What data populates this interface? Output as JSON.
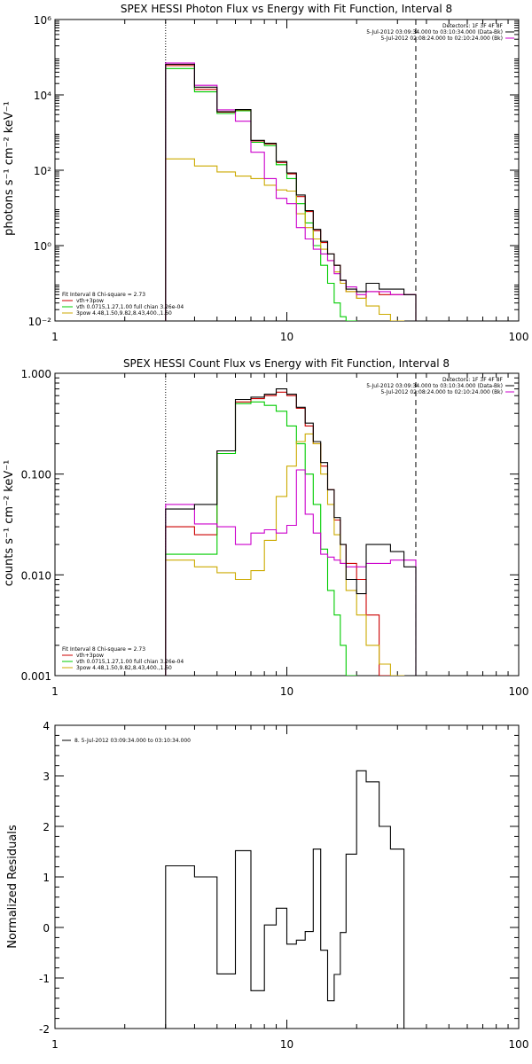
{
  "colors": {
    "total": "#000000",
    "vth_3pow": "#cc0000",
    "vth": "#00cc00",
    "pow3": "#ccaa00",
    "bk": "#cc00cc"
  },
  "chart_data": [
    {
      "type": "line",
      "title": "SPEX HESSI Photon Flux vs Energy with Fit Function, Interval 8",
      "ylabel": "photons s⁻¹ cm⁻² keV⁻¹",
      "xlabel": "",
      "xscale": "log",
      "yscale": "log",
      "xlim": [
        1,
        100
      ],
      "ylim": [
        0.01,
        1000000
      ],
      "xtick_labels": [
        "1",
        "10",
        "100"
      ],
      "ytick_labels": [
        "10⁻²",
        "10⁰",
        "10²",
        "10⁴",
        "10⁶"
      ],
      "vline_dotted": 3,
      "vline_dashed": 36,
      "legend_top_right": [
        "Detectors: 1F 3F 4F 8F",
        "5-Jul-2012 03:09:34.000 to 03:10:34.000 (Data-Bk)",
        "5-Jul-2012 02:08:24.000 to 02:10:24.000 (Bk)"
      ],
      "legend_bottom_left": [
        "Fit Interval 8   Chi-square = 2.73",
        "vth+3pow",
        "vth 0.0715,1.27,1.00  full chian 3.26e-04",
        "3pow 4.48,1.50,9.82,8.43,400.,1.60"
      ],
      "edges": [
        3,
        4,
        5,
        6,
        7,
        8,
        9,
        10,
        11,
        12,
        13,
        14,
        15,
        16,
        17,
        18,
        20,
        22,
        25,
        28,
        32,
        36
      ],
      "series": [
        {
          "name": "vth+3pow",
          "color_key": "vth_3pow",
          "values": [
            60000,
            14000,
            3500,
            4000,
            600,
            500,
            160,
            80,
            20,
            8,
            2.5,
            1.2,
            0.6,
            0.3,
            0.12,
            0.06,
            0.04,
            0.06,
            0.05,
            0.05,
            0.05
          ]
        },
        {
          "name": "vth",
          "color_key": "vth",
          "values": [
            50000,
            12000,
            3200,
            3800,
            550,
            450,
            140,
            60,
            13,
            4,
            1,
            0.3,
            0.1,
            0.03,
            0.013,
            0.01
          ]
        },
        {
          "name": "3pow",
          "color_key": "pow3",
          "values": [
            200,
            130,
            90,
            70,
            60,
            40,
            30,
            28,
            7,
            3,
            1.5,
            0.8,
            0.4,
            0.2,
            0.1,
            0.06,
            0.04,
            0.025,
            0.015,
            0.01
          ]
        },
        {
          "name": "Bk",
          "color_key": "bk",
          "values": [
            70000,
            18000,
            4000,
            2000,
            300,
            60,
            18,
            13,
            3,
            1.5,
            0.8,
            0.6,
            0.4,
            0.18,
            0.12,
            0.08,
            0.05,
            0.06,
            0.06,
            0.05,
            0.05
          ]
        },
        {
          "name": "Data-Bk",
          "color_key": "total",
          "values": [
            65000,
            16000,
            3600,
            4100,
            620,
            520,
            170,
            85,
            22,
            8.5,
            2.7,
            1.3,
            0.6,
            0.3,
            0.12,
            0.07,
            0.06,
            0.1,
            0.07,
            0.07,
            0.05
          ]
        }
      ]
    },
    {
      "type": "line",
      "title": "SPEX HESSI Count Flux vs Energy with Fit Function, Interval 8",
      "ylabel": "counts s⁻¹ cm⁻² keV⁻¹",
      "xlabel": "",
      "xscale": "log",
      "yscale": "log",
      "xlim": [
        1,
        100
      ],
      "ylim": [
        0.001,
        1
      ],
      "xtick_labels": [
        "1",
        "10",
        "100"
      ],
      "ytick_labels": [
        "0.001",
        "0.010",
        "0.100",
        "1.000"
      ],
      "vline_dotted": 3,
      "vline_dashed": 36,
      "legend_top_right": [
        "Detectors: 1F 3F 4F 8F",
        "5-Jul-2012 03:09:34.000 to 03:10:34.000 (Data-Bk)",
        "5-Jul-2012 02:08:24.000 to 02:10:24.000 (Bk)"
      ],
      "legend_bottom_left": [
        "Fit Interval 8   Chi-square = 2.73",
        "vth+3pow",
        "vth 0.0715,1.27,1.00  full chian 3.26e-04",
        "3pow 4.48,1.50,9.82,8.43,400.,1.60"
      ],
      "edges": [
        3,
        4,
        5,
        6,
        7,
        8,
        9,
        10,
        11,
        12,
        13,
        14,
        15,
        16,
        17,
        18,
        20,
        22,
        25,
        28,
        32,
        36
      ],
      "series": [
        {
          "name": "vth+3pow",
          "color_key": "vth_3pow",
          "values": [
            0.03,
            0.025,
            0.17,
            0.52,
            0.56,
            0.6,
            0.65,
            0.6,
            0.45,
            0.3,
            0.2,
            0.12,
            0.07,
            0.035,
            0.02,
            0.013,
            0.009,
            0.004,
            0.001
          ]
        },
        {
          "name": "vth",
          "color_key": "vth",
          "values": [
            0.016,
            0.016,
            0.16,
            0.5,
            0.52,
            0.48,
            0.42,
            0.3,
            0.2,
            0.1,
            0.05,
            0.018,
            0.007,
            0.004,
            0.002,
            0.001
          ]
        },
        {
          "name": "3pow",
          "color_key": "pow3",
          "values": [
            0.014,
            0.012,
            0.0105,
            0.009,
            0.011,
            0.022,
            0.06,
            0.12,
            0.21,
            0.25,
            0.2,
            0.1,
            0.05,
            0.025,
            0.013,
            0.007,
            0.004,
            0.002,
            0.0013,
            0.001
          ]
        },
        {
          "name": "Bk",
          "color_key": "bk",
          "values": [
            0.05,
            0.032,
            0.03,
            0.02,
            0.026,
            0.028,
            0.026,
            0.031,
            0.11,
            0.04,
            0.026,
            0.016,
            0.015,
            0.014,
            0.013,
            0.012,
            0.012,
            0.013,
            0.013,
            0.014,
            0.014
          ]
        },
        {
          "name": "Data-Bk",
          "color_key": "total",
          "values": [
            0.045,
            0.05,
            0.17,
            0.55,
            0.58,
            0.62,
            0.7,
            0.62,
            0.46,
            0.32,
            0.21,
            0.13,
            0.07,
            0.037,
            0.02,
            0.009,
            0.0065,
            0.02,
            0.02,
            0.017,
            0.012
          ]
        }
      ]
    },
    {
      "type": "line",
      "title": "",
      "ylabel": "Normalized Residuals",
      "xlabel": "",
      "xscale": "log",
      "yscale": "linear",
      "xlim": [
        1,
        100
      ],
      "ylim": [
        -2,
        4
      ],
      "xtick_labels": [
        "1",
        "10",
        "100"
      ],
      "ytick_labels": [
        "-2",
        "-1",
        "0",
        "1",
        "2",
        "3",
        "4"
      ],
      "legend_top_left": [
        "8.  5-Jul-2012 03:09:34.000 to 03:10:34.000"
      ],
      "edges": [
        3,
        4,
        5,
        6,
        7,
        8,
        9,
        10,
        11,
        12,
        13,
        14,
        15,
        16,
        17,
        18,
        20,
        22,
        25,
        28,
        32,
        36
      ],
      "series": [
        {
          "name": "",
          "color_key": "total",
          "values": [
            1.22,
            1.0,
            -0.92,
            1.52,
            -1.25,
            0.05,
            0.38,
            -0.33,
            -0.25,
            -0.08,
            1.55,
            -0.45,
            -1.45,
            -0.93,
            -0.1,
            1.45,
            3.1,
            2.88,
            2.0,
            1.55
          ]
        }
      ]
    }
  ]
}
